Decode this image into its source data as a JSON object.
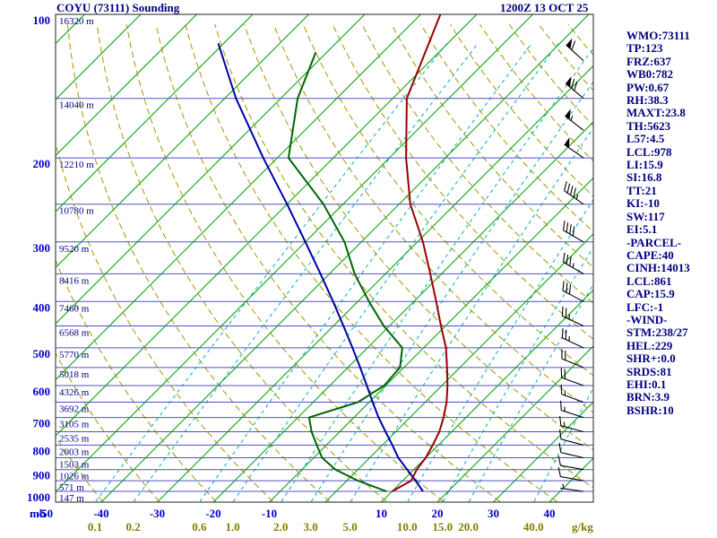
{
  "chart_data": {
    "type": "skewt_log_p_sounding",
    "title": "COYU (73111) Sounding",
    "datetime": "1200Z 13 OCT 25",
    "pressure_axis": {
      "unit_label": "mb",
      "ticks": [
        100,
        200,
        300,
        400,
        500,
        600,
        700,
        800,
        900,
        1000
      ],
      "top_mb": 100,
      "bottom_mb": 1050
    },
    "temp_axis": {
      "unit": "C",
      "ticks": [
        -50,
        -40,
        -30,
        -20,
        -10,
        10,
        20,
        30,
        40
      ]
    },
    "isotherms": {
      "min": -130,
      "max": 50,
      "step": 10
    },
    "dry_adiabats": {
      "theta_k_min": 230,
      "theta_k_max": 450,
      "step_k": 10
    },
    "mixing_ratio_lines": {
      "unit_label": "g/kg",
      "values": [
        0.1,
        0.2,
        0.6,
        1.0,
        2.0,
        3.0,
        5.0,
        10.0,
        15.0,
        20.0,
        40.0
      ]
    },
    "height_labels": [
      {
        "pressure_mb": 100,
        "label": "16320 m"
      },
      {
        "pressure_mb": 150,
        "label": "14040 m"
      },
      {
        "pressure_mb": 200,
        "label": "12210 m"
      },
      {
        "pressure_mb": 250,
        "label": "10780 m"
      },
      {
        "pressure_mb": 300,
        "label": "9520 m"
      },
      {
        "pressure_mb": 350,
        "label": "8416 m"
      },
      {
        "pressure_mb": 400,
        "label": "7460 m"
      },
      {
        "pressure_mb": 450,
        "label": "6568 m"
      },
      {
        "pressure_mb": 500,
        "label": "5770 m"
      },
      {
        "pressure_mb": 550,
        "label": "5018 m"
      },
      {
        "pressure_mb": 600,
        "label": "4326 m"
      },
      {
        "pressure_mb": 650,
        "label": "3692 m"
      },
      {
        "pressure_mb": 700,
        "label": "3105 m"
      },
      {
        "pressure_mb": 750,
        "label": "2535 m"
      },
      {
        "pressure_mb": 800,
        "label": "2003 m"
      },
      {
        "pressure_mb": 850,
        "label": "1503 m"
      },
      {
        "pressure_mb": 900,
        "label": "1026 m"
      },
      {
        "pressure_mb": 950,
        "label": "571 m"
      },
      {
        "pressure_mb": 1000,
        "label": "147 m"
      }
    ],
    "temperature_trace_p_t": [
      [
        1000,
        10
      ],
      [
        950,
        11.5
      ],
      [
        900,
        10.5
      ],
      [
        850,
        10
      ],
      [
        800,
        9
      ],
      [
        750,
        7.8
      ],
      [
        700,
        6
      ],
      [
        650,
        3.8
      ],
      [
        600,
        1
      ],
      [
        550,
        -2.3
      ],
      [
        500,
        -6
      ],
      [
        450,
        -10.8
      ],
      [
        400,
        -16
      ],
      [
        350,
        -22
      ],
      [
        300,
        -29
      ],
      [
        250,
        -38
      ],
      [
        200,
        -47
      ],
      [
        150,
        -57.5
      ],
      [
        100,
        -66.5
      ]
    ],
    "dewpoint_trace_p_t": [
      [
        1000,
        9
      ],
      [
        950,
        2
      ],
      [
        900,
        -4
      ],
      [
        850,
        -8.5
      ],
      [
        800,
        -11.7
      ],
      [
        750,
        -15
      ],
      [
        700,
        -18
      ],
      [
        650,
        -12
      ],
      [
        600,
        -10.3
      ],
      [
        550,
        -10.7
      ],
      [
        500,
        -13.8
      ],
      [
        450,
        -21
      ],
      [
        400,
        -28
      ],
      [
        350,
        -35.5
      ],
      [
        300,
        -43
      ],
      [
        250,
        -53.5
      ],
      [
        200,
        -68
      ],
      [
        150,
        -77
      ],
      [
        120,
        -82
      ]
    ],
    "parcel_trace_p_t": [
      [
        1000,
        15.5
      ],
      [
        950,
        12.3
      ],
      [
        900,
        8.8
      ],
      [
        850,
        5.1
      ],
      [
        800,
        1.8
      ],
      [
        750,
        -1.8
      ],
      [
        700,
        -5.6
      ],
      [
        650,
        -9.4
      ],
      [
        600,
        -13.4
      ],
      [
        550,
        -17.8
      ],
      [
        500,
        -22.7
      ],
      [
        450,
        -28.2
      ],
      [
        400,
        -34.4
      ],
      [
        350,
        -41.6
      ],
      [
        300,
        -50
      ],
      [
        250,
        -60
      ],
      [
        200,
        -72.5
      ],
      [
        150,
        -88
      ],
      [
        115,
        -101
      ]
    ],
    "wind_barbs": [
      {
        "p": 100,
        "dir_deg": 315,
        "speed_kt": 65
      },
      {
        "p": 125,
        "dir_deg": 312,
        "speed_kt": 60
      },
      {
        "p": 150,
        "dir_deg": 310,
        "speed_kt": 70
      },
      {
        "p": 175,
        "dir_deg": 308,
        "speed_kt": 55
      },
      {
        "p": 200,
        "dir_deg": 305,
        "speed_kt": 50
      },
      {
        "p": 250,
        "dir_deg": 305,
        "speed_kt": 45
      },
      {
        "p": 300,
        "dir_deg": 300,
        "speed_kt": 40
      },
      {
        "p": 350,
        "dir_deg": 300,
        "speed_kt": 35
      },
      {
        "p": 400,
        "dir_deg": 298,
        "speed_kt": 30
      },
      {
        "p": 450,
        "dir_deg": 295,
        "speed_kt": 25
      },
      {
        "p": 500,
        "dir_deg": 295,
        "speed_kt": 25
      },
      {
        "p": 550,
        "dir_deg": 292,
        "speed_kt": 20
      },
      {
        "p": 600,
        "dir_deg": 290,
        "speed_kt": 20
      },
      {
        "p": 650,
        "dir_deg": 290,
        "speed_kt": 15
      },
      {
        "p": 700,
        "dir_deg": 288,
        "speed_kt": 15
      },
      {
        "p": 750,
        "dir_deg": 285,
        "speed_kt": 15
      },
      {
        "p": 800,
        "dir_deg": 285,
        "speed_kt": 10
      },
      {
        "p": 850,
        "dir_deg": 283,
        "speed_kt": 10
      },
      {
        "p": 900,
        "dir_deg": 280,
        "speed_kt": 10
      },
      {
        "p": 950,
        "dir_deg": 280,
        "speed_kt": 10
      },
      {
        "p": 1000,
        "dir_deg": 278,
        "speed_kt": 5
      }
    ],
    "colors": {
      "pressure_line": "#5050c8",
      "isotherm": "#00a000",
      "mixing_ratio": "#00b0b0",
      "adiabat": "#9a9a00",
      "temperature": "#990000",
      "dewpoint": "#006600",
      "parcel": "#0000aa",
      "wind_barb": "#000000",
      "pressure_label": "#0000cc",
      "temp_label": "#0000cc",
      "mixing_label": "#808000",
      "height_label": "#000080",
      "border": "#222222"
    }
  },
  "stats_panel": {
    "items": [
      "WMO:73111",
      "TP:123",
      "FRZ:637",
      "WB0:782",
      "PW:0.67",
      "RH:38.3",
      "MAXT:23.8",
      "TH:5623",
      "L57:4.5",
      "LCL:978",
      "LI:15.9",
      "SI:16.8",
      "TT:21",
      "KI:-10",
      "SW:117",
      "EI:5.1",
      "-PARCEL-",
      "CAPE:40",
      "CINH:14013",
      "LCL:861",
      "CAP:15.9",
      "LFC:-1",
      "-WIND-",
      "STM:238/27",
      "HEL:229",
      "SHR+:0.0",
      "SRDS:81",
      "EHI:0.1",
      "BRN:3.9",
      "BSHR:10"
    ]
  }
}
